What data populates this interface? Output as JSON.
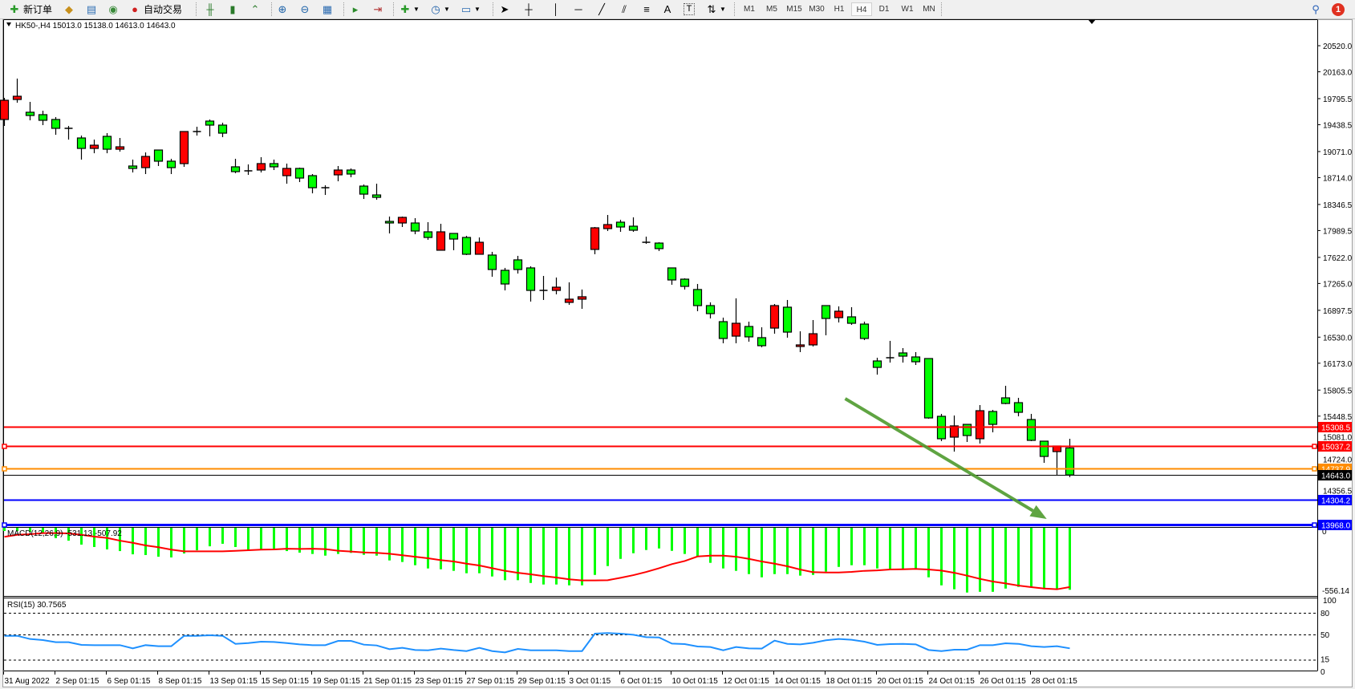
{
  "toolbar": {
    "new_order_label": "新订单",
    "auto_trading_label": "自动交易",
    "timeframes": [
      "M1",
      "M5",
      "M15",
      "M30",
      "H1",
      "H4",
      "D1",
      "W1",
      "MN"
    ],
    "active_timeframe": "H4",
    "notification_count": "1",
    "icons": [
      "new-order-icon",
      "gold-icon",
      "market-watch-icon",
      "signals-icon",
      "auto-trading-icon",
      "bar-chart-icon",
      "candlestick-icon",
      "line-chart-icon",
      "zoom-in-icon",
      "zoom-out-icon",
      "tile-windows-icon",
      "auto-scroll-icon",
      "chart-shift-icon",
      "add-indicator-icon",
      "periods-icon",
      "templates-icon",
      "cursor-icon",
      "crosshair-icon",
      "vertical-line-icon",
      "horizontal-line-icon",
      "trendline-icon",
      "equidistant-channel-icon",
      "fibonacci-icon",
      "text-icon",
      "text-label-icon",
      "arrows-icon",
      "search-icon",
      "notification-icon"
    ]
  },
  "chart": {
    "header": "HK50-,H4  15013.0 15138.0 14613.0 14643.0",
    "up_color": "#ff0000",
    "down_color": "#00ff00",
    "price_ticks": [
      "20520.0",
      "20163.0",
      "19795.5",
      "19438.5",
      "19071.0",
      "18714.0",
      "18346.5",
      "17989.5",
      "17622.0",
      "17265.0",
      "16897.5",
      "16530.0",
      "16173.0",
      "15805.5",
      "15448.5",
      "15081.0",
      "14724.0",
      "14356.5"
    ],
    "time_labels": [
      "31 Aug 2022",
      "2 Sep 01:15",
      "6 Sep 01:15",
      "8 Sep 01:15",
      "13 Sep 01:15",
      "15 Sep 01:15",
      "19 Sep 01:15",
      "21 Sep 01:15",
      "23 Sep 01:15",
      "27 Sep 01:15",
      "29 Sep 01:15",
      "3 Oct 01:15",
      "6 Oct 01:15",
      "10 Oct 01:15",
      "12 Oct 01:15",
      "14 Oct 01:15",
      "18 Oct 01:15",
      "20 Oct 01:15",
      "24 Oct 01:15",
      "26 Oct 01:15",
      "28 Oct 01:15"
    ],
    "levels": [
      {
        "price": "15308.5",
        "color": "#ff0000",
        "handle": false
      },
      {
        "price": "15037.2",
        "color": "#ff0000",
        "handle": true
      },
      {
        "price": "14737.9",
        "color": "#ff8c00",
        "handle": true
      },
      {
        "price": "14643.0",
        "color": "#000000",
        "handle": false
      },
      {
        "price": "14304.2",
        "color": "#0000ff",
        "handle": false
      },
      {
        "price": "13968.0",
        "color": "#0000ff",
        "handle": true
      }
    ],
    "arrow": {
      "color": "#4e9a2e",
      "from": {
        "bar": 66.5,
        "price": 15688
      },
      "to": {
        "bar": 82.2,
        "price": 14041
      }
    }
  },
  "chart_data": {
    "type": "candlestick",
    "symbol": "HK50-",
    "timeframe": "H4",
    "ohlc": [
      [
        19510,
        19806,
        19422,
        19773
      ],
      [
        19784,
        20070,
        19740,
        19828
      ],
      [
        19609,
        19751,
        19499,
        19565
      ],
      [
        19576,
        19630,
        19433,
        19499
      ],
      [
        19510,
        19543,
        19301,
        19389
      ],
      [
        19389,
        19422,
        19235,
        19389
      ],
      [
        19257,
        19290,
        18961,
        19114
      ],
      [
        19114,
        19235,
        19048,
        19158
      ],
      [
        19279,
        19323,
        19048,
        19103
      ],
      [
        19103,
        19257,
        19070,
        19136
      ],
      [
        18873,
        18961,
        18785,
        18840
      ],
      [
        18851,
        19059,
        18763,
        19004
      ],
      [
        19092,
        19092,
        18873,
        18939
      ],
      [
        18939,
        18972,
        18763,
        18851
      ],
      [
        18906,
        19345,
        18862,
        19345
      ],
      [
        19345,
        19411,
        19290,
        19345
      ],
      [
        19488,
        19510,
        19279,
        19433
      ],
      [
        19433,
        19466,
        19268,
        19323
      ],
      [
        18862,
        18972,
        18774,
        18796
      ],
      [
        18807,
        18895,
        18752,
        18807
      ],
      [
        18818,
        18994,
        18785,
        18906
      ],
      [
        18906,
        18961,
        18818,
        18862
      ],
      [
        18741,
        18906,
        18631,
        18840
      ],
      [
        18840,
        18851,
        18653,
        18708
      ],
      [
        18741,
        18763,
        18499,
        18576
      ],
      [
        18576,
        18609,
        18477,
        18576
      ],
      [
        18752,
        18873,
        18664,
        18818
      ],
      [
        18818,
        18840,
        18719,
        18763
      ],
      [
        18598,
        18620,
        18422,
        18488
      ],
      [
        18477,
        18631,
        18411,
        18444
      ],
      [
        18115,
        18181,
        17950,
        18093
      ],
      [
        18093,
        18181,
        18038,
        18170
      ],
      [
        18093,
        18159,
        17939,
        17983
      ],
      [
        17972,
        18104,
        17862,
        17895
      ],
      [
        17720,
        18082,
        17720,
        17972
      ],
      [
        17950,
        17950,
        17720,
        17873
      ],
      [
        17895,
        17917,
        17654,
        17665
      ],
      [
        17665,
        17895,
        17665,
        17829
      ],
      [
        17654,
        17698,
        17357,
        17456
      ],
      [
        17445,
        17478,
        17170,
        17258
      ],
      [
        17588,
        17643,
        17401,
        17456
      ],
      [
        17478,
        17500,
        17017,
        17170
      ],
      [
        17170,
        17368,
        17039,
        17170
      ],
      [
        17170,
        17346,
        17116,
        17214
      ],
      [
        17006,
        17280,
        16973,
        17050
      ],
      [
        17050,
        17182,
        16918,
        17083
      ],
      [
        17731,
        18038,
        17665,
        18027
      ],
      [
        18016,
        18203,
        17983,
        18071
      ],
      [
        18104,
        18137,
        17972,
        18038
      ],
      [
        18049,
        18170,
        17972,
        17994
      ],
      [
        17829,
        17906,
        17807,
        17829
      ],
      [
        17818,
        17829,
        17709,
        17742
      ],
      [
        17478,
        17478,
        17247,
        17313
      ],
      [
        17324,
        17335,
        17182,
        17225
      ],
      [
        17182,
        17258,
        16885,
        16962
      ],
      [
        16962,
        17006,
        16786,
        16852
      ],
      [
        16742,
        16797,
        16446,
        16512
      ],
      [
        16544,
        17061,
        16446,
        16720
      ],
      [
        16676,
        16742,
        16468,
        16534
      ],
      [
        16523,
        16665,
        16391,
        16413
      ],
      [
        16654,
        16984,
        16577,
        16962
      ],
      [
        16940,
        17039,
        16523,
        16599
      ],
      [
        16402,
        16610,
        16325,
        16424
      ],
      [
        16424,
        16764,
        16402,
        16577
      ],
      [
        16962,
        16962,
        16555,
        16786
      ],
      [
        16797,
        16951,
        16731,
        16885
      ],
      [
        16808,
        16940,
        16698,
        16720
      ],
      [
        16709,
        16742,
        16490,
        16512
      ],
      [
        16204,
        16248,
        16017,
        16116
      ],
      [
        16248,
        16479,
        16182,
        16248
      ],
      [
        16314,
        16380,
        16182,
        16270
      ],
      [
        16259,
        16325,
        16149,
        16193
      ],
      [
        16237,
        16237,
        15413,
        15424
      ],
      [
        15446,
        15479,
        15106,
        15139
      ],
      [
        15161,
        15457,
        14963,
        15315
      ],
      [
        15336,
        15336,
        15095,
        15183
      ],
      [
        15139,
        15600,
        15073,
        15523
      ],
      [
        15512,
        15534,
        15227,
        15336
      ],
      [
        15699,
        15864,
        15611,
        15622
      ],
      [
        15633,
        15699,
        15446,
        15501
      ],
      [
        15402,
        15479,
        15106,
        15117
      ],
      [
        15106,
        15106,
        14809,
        14897
      ],
      [
        14963,
        15040,
        14634,
        15040
      ],
      [
        15013,
        15138,
        14613,
        14643
      ]
    ],
    "price_range": [
      13968,
      20700
    ],
    "macd": {
      "label": "MACD(12,26,9) -531.13 -507.92",
      "axis_labels": [
        "0",
        "-556.14"
      ],
      "range": [
        -556.14,
        0
      ],
      "hist_color": "#00ff00",
      "signal_color": "#ff0000",
      "histogram": [
        -40,
        -40,
        -47,
        -60,
        -100,
        -121,
        -154,
        -174,
        -194,
        -208,
        -235,
        -241,
        -255,
        -261,
        -228,
        -201,
        -168,
        -147,
        -174,
        -201,
        -194,
        -188,
        -208,
        -221,
        -232,
        -246,
        -232,
        -223,
        -239,
        -246,
        -286,
        -299,
        -326,
        -353,
        -360,
        -373,
        -393,
        -393,
        -420,
        -451,
        -451,
        -474,
        -487,
        -487,
        -494,
        -494,
        -407,
        -333,
        -273,
        -226,
        -199,
        -186,
        -206,
        -232,
        -253,
        -306,
        -353,
        -373,
        -400,
        -427,
        -400,
        -400,
        -413,
        -407,
        -380,
        -340,
        -326,
        -326,
        -353,
        -367,
        -360,
        -360,
        -427,
        -494,
        -527,
        -554,
        -548,
        -548,
        -521,
        -507,
        -514,
        -527,
        -527,
        -531.13
      ],
      "signal": [
        -89,
        -72,
        -67,
        -58,
        -58,
        -60,
        -72,
        -87,
        -98,
        -121,
        -139,
        -161,
        -176,
        -196,
        -210,
        -210,
        -210,
        -210,
        -206,
        -201,
        -196,
        -194,
        -188,
        -190,
        -188,
        -192,
        -205,
        -212,
        -219,
        -223,
        -230,
        -243,
        -255,
        -268,
        -284,
        -295,
        -313,
        -328,
        -351,
        -373,
        -389,
        -402,
        -417,
        -429,
        -444,
        -453,
        -453,
        -451,
        -431,
        -409,
        -382,
        -351,
        -317,
        -291,
        -253,
        -246,
        -246,
        -255,
        -273,
        -295,
        -313,
        -335,
        -362,
        -384,
        -387,
        -387,
        -382,
        -373,
        -369,
        -362,
        -360,
        -357,
        -362,
        -371,
        -389,
        -413,
        -440,
        -462,
        -478,
        -496,
        -509,
        -521,
        -527,
        -507.92
      ]
    },
    "rsi": {
      "label": "RSI(15) 30.7565",
      "levels": [
        "100",
        "80",
        "50",
        "15",
        "0"
      ],
      "dashed_levels": [
        80,
        50,
        15
      ],
      "color": "#1e90ff",
      "values": [
        48.1,
        48.1,
        43.7,
        42.2,
        39.3,
        39.3,
        35.6,
        35.2,
        35.2,
        35.2,
        30.7,
        35.2,
        33.7,
        33.7,
        48.1,
        48.1,
        48.9,
        48.1,
        37.0,
        38.1,
        40.0,
        39.6,
        38.1,
        36.3,
        35.2,
        35.2,
        41.1,
        41.1,
        35.9,
        34.8,
        29.6,
        31.5,
        28.5,
        28.1,
        30.4,
        28.5,
        27.0,
        31.5,
        27.0,
        25.2,
        30.0,
        28.1,
        28.1,
        28.1,
        27.0,
        27.0,
        51.1,
        51.9,
        51.1,
        49.6,
        46.3,
        45.9,
        37.4,
        36.7,
        33.3,
        32.6,
        28.1,
        32.6,
        30.7,
        30.4,
        41.5,
        37.0,
        36.3,
        38.5,
        41.9,
        43.7,
        42.6,
        40.0,
        35.6,
        36.7,
        37.0,
        36.3,
        28.5,
        27.0,
        28.9,
        28.9,
        35.2,
        35.2,
        37.8,
        37.0,
        33.7,
        32.6,
        33.7,
        30.76
      ]
    }
  }
}
